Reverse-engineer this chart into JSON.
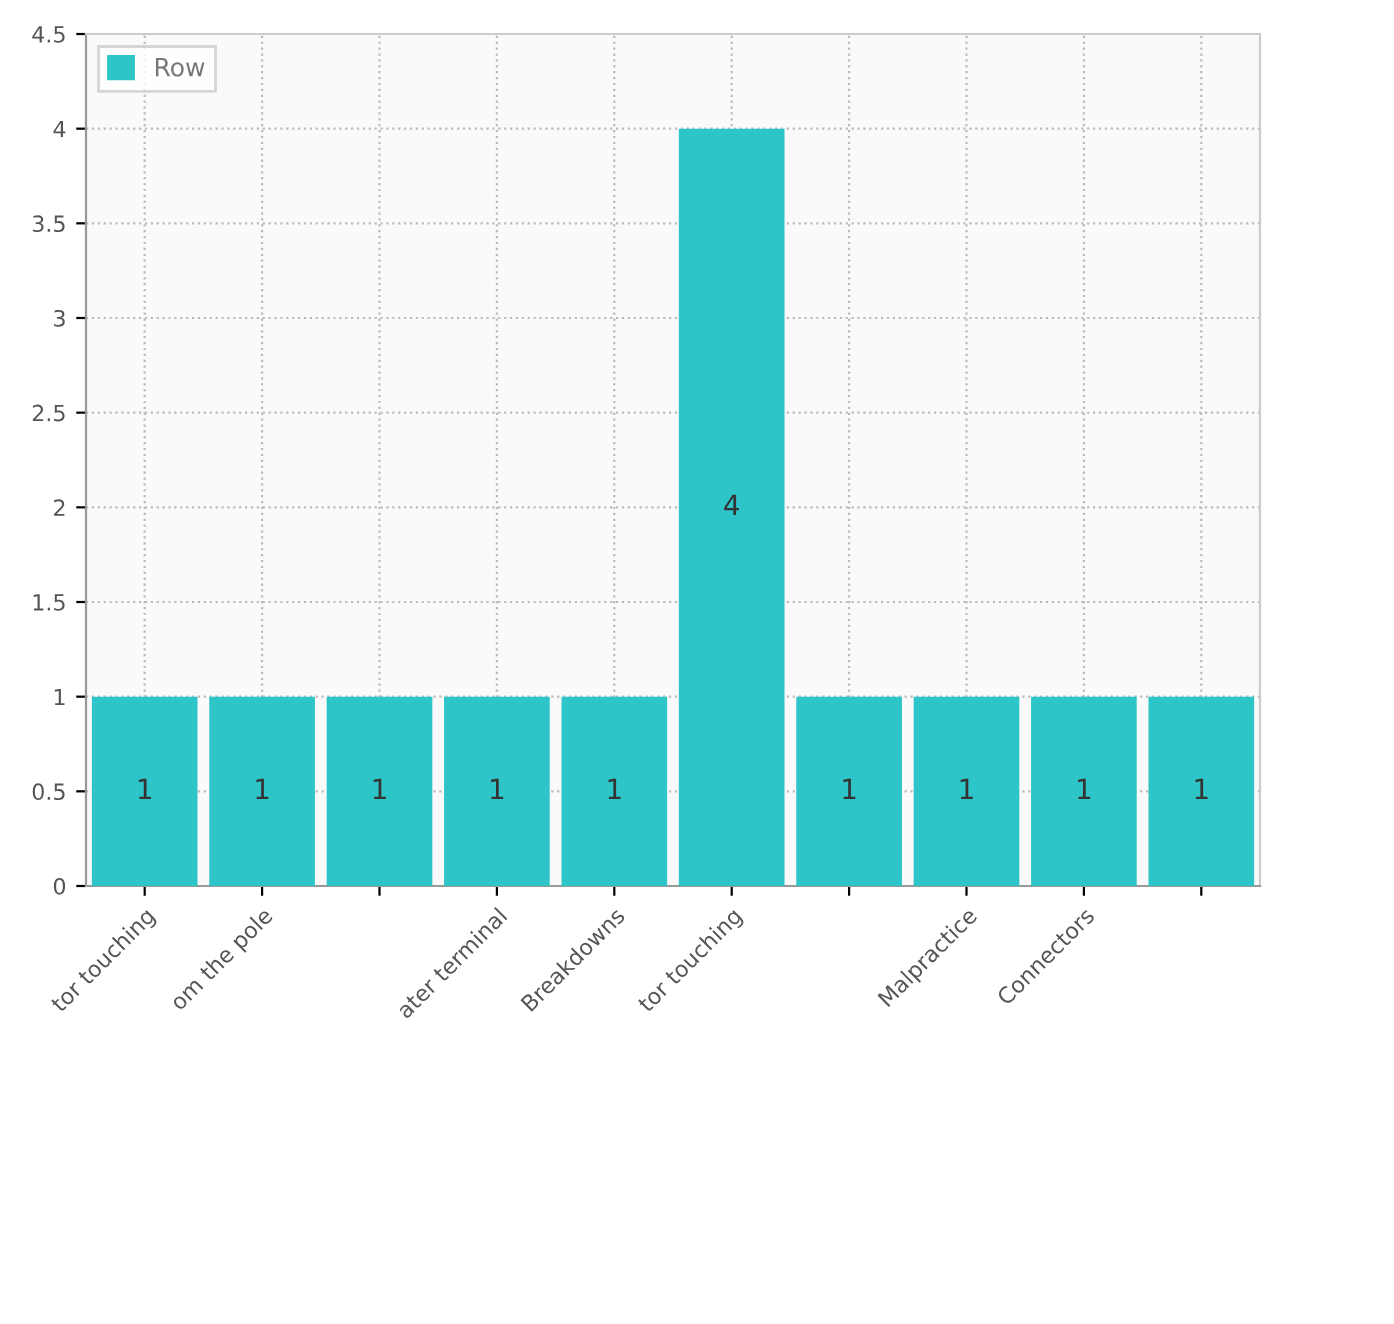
{
  "chart_data": {
    "type": "bar",
    "categories": [
      "tor touching",
      "om the pole",
      null,
      "ater terminal",
      "Breakdowns",
      "tor touching",
      null,
      "Malpractice",
      "Connectors",
      null
    ],
    "series": [
      {
        "name": "Row",
        "color": "#2ec5c8",
        "values": [
          1,
          1,
          1,
          1,
          1,
          4,
          1,
          1,
          1,
          1
        ]
      }
    ],
    "ylim": [
      0,
      4.5
    ],
    "yticks": [
      0,
      0.5,
      1,
      1.5,
      2,
      2.5,
      3,
      3.5,
      4,
      4.5
    ],
    "grid": true,
    "legend": "top left",
    "data_labels": true
  }
}
